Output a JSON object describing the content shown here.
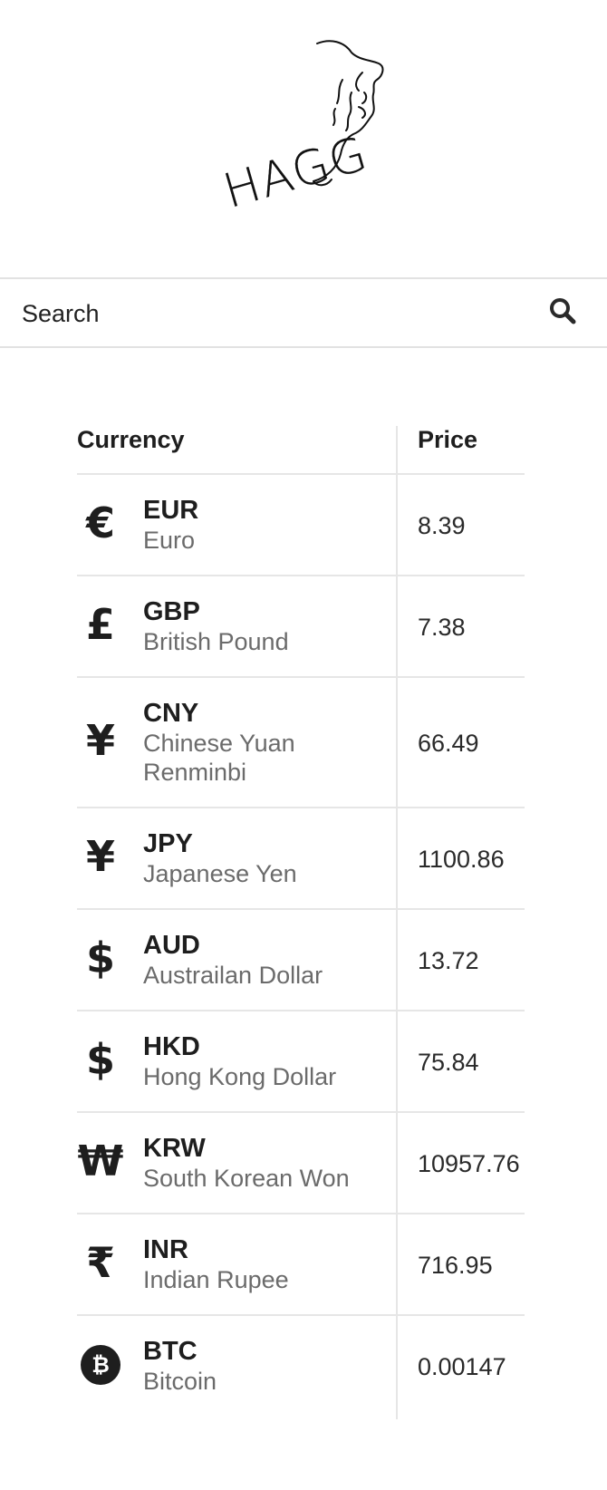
{
  "logo": {
    "text": "HAGG",
    "icon": "face-profile-line-drawing"
  },
  "search": {
    "placeholder": "Search",
    "icon": "search-icon"
  },
  "table": {
    "headers": {
      "currency": "Currency",
      "price": "Price"
    },
    "rows": [
      {
        "symbol": "€",
        "code": "EUR",
        "name": "Euro",
        "price": "8.39"
      },
      {
        "symbol": "£",
        "code": "GBP",
        "name": "British Pound",
        "price": "7.38"
      },
      {
        "symbol": "¥",
        "code": "CNY",
        "name": "Chinese Yuan Renminbi",
        "price": "66.49"
      },
      {
        "symbol": "¥",
        "code": "JPY",
        "name": "Japanese Yen",
        "price": "1100.86"
      },
      {
        "symbol": "$",
        "code": "AUD",
        "name": "Austrailan Dollar",
        "price": "13.72"
      },
      {
        "symbol": "$",
        "code": "HKD",
        "name": "Hong Kong Dollar",
        "price": "75.84"
      },
      {
        "symbol": "₩",
        "code": "KRW",
        "name": "South Korean Won",
        "price": "10957.76"
      },
      {
        "symbol": "₹",
        "code": "INR",
        "name": "Indian Rupee",
        "price": "716.95"
      },
      {
        "symbol": "₿",
        "code": "BTC",
        "name": "Bitcoin",
        "price": "0.00147"
      }
    ]
  }
}
